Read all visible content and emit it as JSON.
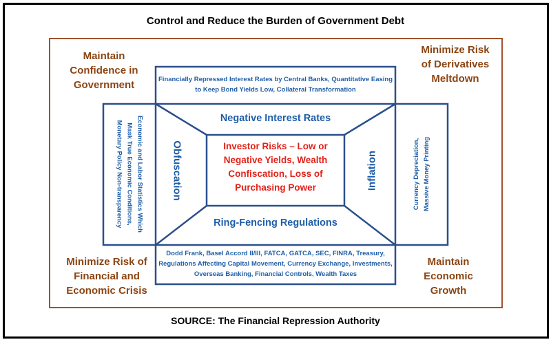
{
  "title": "Control and Reduce the Burden of Government Debt",
  "source": "SOURCE: The Financial Repression Authority",
  "corners": {
    "top_left": "Maintain Confidence in Government",
    "top_right": "Minimize Risk of Derivatives Meltdown",
    "bottom_left": "Minimize Risk of Financial and Economic Crisis",
    "bottom_right": "Maintain Economic Growth"
  },
  "boxes": {
    "top": "Financially Repressed Interest Rates by Central Banks, Quantitative Easing to Keep Bond Yields Low, Collateral Transformation",
    "bottom": "Dodd Frank, Basel Accord II/III, FATCA, GATCA, SEC, FINRA, Treasury, Regulations Affecting Capital Movement, Currency Exchange, Investments, Overseas Banking, Financial Controls, Wealth Taxes",
    "left": "Economic and Labor Statistics Which Mask True Economic Conditions, Monetary Policy Non-transparency",
    "right": "Currency Depreciation, Massive Money Printing"
  },
  "trapezoids": {
    "top": "Negative Interest Rates",
    "bottom": "Ring-Fencing Regulations",
    "left": "Obfuscation",
    "right": "Inflation"
  },
  "center": "Investor Risks – Low or Negative Yields, Wealth Confiscation, Loss of Purchasing Power",
  "colors": {
    "blue": "#1f5ea8",
    "frame_blue": "#2b4f8c",
    "brown": "#8b4513",
    "red": "#e32119"
  }
}
